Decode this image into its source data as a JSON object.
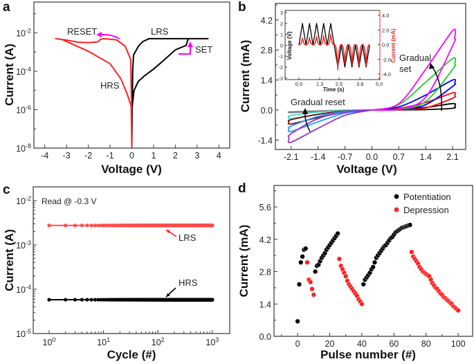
{
  "chart_data": [
    {
      "panel": "a",
      "type": "line",
      "xlabel": "Voltage (V)",
      "ylabel": "Current (A)",
      "xlim": [
        -4.5,
        4.5
      ],
      "ylim": [
        1e-08,
        0.4
      ],
      "yscale": "log",
      "xticks": [
        -4,
        -3,
        -2,
        -1,
        0,
        1,
        2,
        3,
        4
      ],
      "yticks": [
        "10^-8",
        "10^-6",
        "10^-4",
        "10^-2"
      ],
      "series": [
        {
          "color": "#000000",
          "points": [
            [
              0,
              3e-07
            ],
            [
              0.02,
              1.5e-06
            ],
            [
              0.1,
              1e-05
            ],
            [
              0.3,
              3e-05
            ],
            [
              0.6,
              6e-05
            ],
            [
              1,
              0.00013
            ],
            [
              1.5,
              0.0004
            ],
            [
              2,
              0.0013
            ],
            [
              2.4,
              0.002
            ],
            [
              2.5,
              0.0022
            ],
            [
              2.55,
              0.0035
            ],
            [
              2.6,
              0.005
            ],
            [
              3.5,
              0.005
            ],
            [
              0.8,
              0.005
            ],
            [
              0.5,
              0.0035
            ],
            [
              0.3,
              0.002
            ],
            [
              0.08,
              0.0007
            ],
            [
              0.04,
              0.0001
            ],
            [
              0.02,
              2e-06
            ],
            [
              0,
              1e-08
            ]
          ]
        },
        {
          "color": "#ff2020",
          "points": [
            [
              0,
              1e-08
            ],
            [
              -0.01,
              1e-06
            ],
            [
              -0.05,
              0.0004
            ],
            [
              -0.3,
              0.002
            ],
            [
              -0.7,
              0.0043
            ],
            [
              -1.3,
              0.005
            ],
            [
              -1.45,
              0.0045
            ],
            [
              -1.55,
              0.0034
            ],
            [
              -2,
              0.0031
            ],
            [
              -2.5,
              0.0033
            ],
            [
              -3,
              0.0042
            ],
            [
              -3.5,
              0.005
            ],
            [
              -3.2,
              0.0045
            ],
            [
              -2.8,
              0.0028
            ],
            [
              -2,
              0.0011
            ],
            [
              -1,
              0.00025
            ],
            [
              -0.5,
              4e-05
            ],
            [
              -0.2,
              6e-06
            ],
            [
              -0.03,
              1.5e-06
            ],
            [
              0,
              1e-08
            ]
          ]
        }
      ],
      "annotations": {
        "reset": "RESET",
        "lrs": "LRS",
        "set": "SET",
        "hrs": "HRS"
      },
      "annotation_color": "#ff00ff"
    },
    {
      "panel": "b",
      "type": "line",
      "xlabel": "Voltage (V)",
      "ylabel": "Current (mA)",
      "xlim": [
        -2.51,
        2.44
      ],
      "ylim": [
        -1.84,
        4.97
      ],
      "xticks": [
        -2.1,
        -1.4,
        -0.7,
        0.0,
        0.7,
        1.4,
        2.1
      ],
      "yticks": [
        -1.4,
        0.0,
        1.4,
        2.8,
        4.2
      ],
      "voltage_samples": [
        0,
        0.7,
        1.4,
        2.1
      ],
      "positive_loops": [
        {
          "color": "#000000",
          "up": [
            0,
            0.003,
            0.02,
            0.08
          ],
          "down": [
            0,
            0.03,
            0.12,
            0.3
          ]
        },
        {
          "color": "#ff0000",
          "up": [
            0,
            0.01,
            0.1,
            0.55
          ],
          "down": [
            0,
            0.08,
            0.35,
            0.8
          ]
        },
        {
          "color": "#0000ff",
          "up": [
            0,
            0.02,
            0.25,
            1.1
          ],
          "down": [
            0,
            0.15,
            0.7,
            1.4
          ]
        },
        {
          "color": "#22cc22",
          "up": [
            0,
            0.03,
            0.4,
            1.9
          ],
          "down": [
            0,
            0.25,
            1.3,
            2.4
          ]
        },
        {
          "color": "#ff00ff",
          "up": [
            0,
            0.05,
            0.6,
            3.0
          ],
          "down": [
            0,
            0.3,
            1.9,
            3.7
          ]
        }
      ],
      "negative_loops": [
        {
          "color": "#808080",
          "outer": [
            0,
            -0.02,
            -0.07,
            -0.12
          ],
          "inner": [
            0,
            -0.01,
            -0.04,
            -0.08
          ]
        },
        {
          "color": "#40e0c0",
          "outer": [
            0,
            -0.06,
            -0.2,
            -0.4
          ],
          "inner": [
            0,
            -0.02,
            -0.1,
            -0.25
          ]
        },
        {
          "color": "#7b1010",
          "outer": [
            0,
            -0.1,
            -0.35,
            -0.65
          ],
          "inner": [
            0,
            -0.04,
            -0.2,
            -0.45
          ]
        },
        {
          "color": "#1ea0ff",
          "outer": [
            0,
            -0.15,
            -0.55,
            -1.0
          ],
          "inner": [
            0,
            -0.06,
            -0.3,
            -0.75
          ]
        },
        {
          "color": "#9932cc",
          "outer": [
            0,
            -0.25,
            -0.85,
            -1.5
          ],
          "inner": [
            0,
            -0.1,
            -0.4,
            -1.1
          ]
        }
      ],
      "annotations": {
        "gradual_set_1": "Gradual",
        "gradual_set_2": "set",
        "gradual_reset": "Gradual reset"
      },
      "inset": {
        "xlabel": "Time (s)",
        "ylabel_left": "Voltage (V)",
        "ylabel_right": "Current (mA)",
        "xlim": [
          -0.86,
          5.04
        ],
        "ylim_left": [
          -3.14,
          3.19
        ],
        "ylim_right": [
          -4.75,
          4.66
        ],
        "xticks": [
          "0.0",
          "1.3",
          "2.5",
          "3.8",
          "5.0"
        ],
        "yticks_left": [
          -3,
          -2,
          -1,
          0,
          1,
          2,
          3
        ],
        "yticks_right": [
          "-4.0",
          "-2.0",
          "0.0",
          "2.0",
          "4.0"
        ],
        "voltage_amplitude": 2,
        "period_s": 0.44,
        "positive_current_peaks": [
          0.9,
          1.0,
          1.1,
          1.2,
          1.4
        ],
        "negative_current_peaks": [
          -3.4,
          -2.6,
          -2.7,
          -2.8,
          -2.9
        ],
        "voltage_color": "#000000",
        "current_color": "#ff2020"
      }
    },
    {
      "panel": "c",
      "type": "scatter",
      "xlabel": "Cycle (#)",
      "ylabel": "Current (A)",
      "xscale": "log",
      "yscale": "log",
      "xlim": [
        0.51,
        2090
      ],
      "ylim": [
        1e-05,
        0.0204
      ],
      "xticks": [
        "10^0",
        "10^1",
        "10^2",
        "10^3"
      ],
      "yticks": [
        "10^-5",
        "10^-4",
        "10^-3",
        "10^-2"
      ],
      "cycles": [
        1,
        1000
      ],
      "series": [
        {
          "name": "LRS",
          "color": "#ff4d4d",
          "current": 0.00275
        },
        {
          "name": "HRS",
          "color": "#000000",
          "current": 5.8e-05
        }
      ],
      "note": "Read @ -0.3 V"
    },
    {
      "panel": "d",
      "type": "scatter",
      "xlabel": "Pulse number (#)",
      "ylabel": "Current (mA)",
      "xlim": [
        -14.7,
        109
      ],
      "ylim": [
        0,
        6.53
      ],
      "xticks": [
        0,
        20,
        40,
        60,
        80,
        100
      ],
      "yticks": [
        "0.0",
        "1.4",
        "2.8",
        "4.2",
        "5.6"
      ],
      "legend": "top-right",
      "series": [
        {
          "name": "Potentiation",
          "color": "#000000",
          "points": [
            [
              0,
              0.65
            ],
            [
              1,
              2.25
            ],
            [
              2,
              3.2
            ],
            [
              3,
              3.45
            ],
            [
              4,
              3.75
            ],
            [
              5,
              3.8
            ],
            [
              11,
              2.8
            ],
            [
              12,
              3.05
            ],
            [
              13,
              3.1
            ],
            [
              14,
              3.25
            ],
            [
              15,
              3.4
            ],
            [
              16,
              3.5
            ],
            [
              17,
              3.6
            ],
            [
              18,
              3.75
            ],
            [
              19,
              3.85
            ],
            [
              20,
              3.95
            ],
            [
              21,
              4.05
            ],
            [
              22,
              4.15
            ],
            [
              23,
              4.25
            ],
            [
              24,
              4.35
            ],
            [
              25,
              4.45
            ],
            [
              41,
              2.25
            ],
            [
              42,
              2.45
            ],
            [
              43,
              2.55
            ],
            [
              44,
              2.65
            ],
            [
              45,
              2.75
            ],
            [
              46,
              2.9
            ],
            [
              47,
              3.0
            ],
            [
              48,
              3.2
            ],
            [
              49,
              3.4
            ],
            [
              50,
              3.5
            ],
            [
              51,
              3.6
            ],
            [
              52,
              3.7
            ],
            [
              53,
              3.8
            ],
            [
              54,
              3.9
            ],
            [
              55,
              3.95
            ],
            [
              56,
              4.05
            ],
            [
              57,
              4.15
            ],
            [
              58,
              4.25
            ],
            [
              59,
              4.3
            ],
            [
              60,
              4.4
            ],
            [
              61,
              4.5
            ],
            [
              62,
              4.55
            ],
            [
              63,
              4.6
            ],
            [
              64,
              4.65
            ],
            [
              65,
              4.7
            ],
            [
              66,
              4.72
            ],
            [
              67,
              4.75
            ],
            [
              68,
              4.77
            ],
            [
              69,
              4.8
            ],
            [
              70,
              4.82
            ]
          ]
        },
        {
          "name": "Depression",
          "color": "#ff2020",
          "points": [
            [
              6,
              3.2
            ],
            [
              7,
              2.45
            ],
            [
              8,
              2.35
            ],
            [
              9,
              2.05
            ],
            [
              10,
              1.8
            ],
            [
              26,
              3.35
            ],
            [
              27,
              3.05
            ],
            [
              28,
              2.9
            ],
            [
              29,
              2.75
            ],
            [
              30,
              2.6
            ],
            [
              31,
              2.4
            ],
            [
              32,
              2.25
            ],
            [
              33,
              2.15
            ],
            [
              34,
              2.05
            ],
            [
              35,
              1.95
            ],
            [
              36,
              1.85
            ],
            [
              37,
              1.75
            ],
            [
              38,
              1.6
            ],
            [
              39,
              1.5
            ],
            [
              40,
              1.4
            ],
            [
              71,
              3.65
            ],
            [
              72,
              3.45
            ],
            [
              73,
              3.35
            ],
            [
              74,
              3.25
            ],
            [
              75,
              3.15
            ],
            [
              76,
              3.0
            ],
            [
              77,
              2.9
            ],
            [
              78,
              2.8
            ],
            [
              79,
              2.75
            ],
            [
              80,
              2.7
            ],
            [
              81,
              2.65
            ],
            [
              82,
              2.6
            ],
            [
              83,
              2.45
            ],
            [
              84,
              2.3
            ],
            [
              85,
              2.2
            ],
            [
              86,
              2.1
            ],
            [
              87,
              2.05
            ],
            [
              88,
              1.95
            ],
            [
              89,
              1.85
            ],
            [
              90,
              1.8
            ],
            [
              91,
              1.7
            ],
            [
              92,
              1.65
            ],
            [
              93,
              1.58
            ],
            [
              94,
              1.52
            ],
            [
              95,
              1.45
            ],
            [
              96,
              1.4
            ],
            [
              97,
              1.3
            ],
            [
              98,
              1.25
            ],
            [
              99,
              1.18
            ],
            [
              100,
              1.12
            ]
          ]
        }
      ]
    }
  ],
  "panel_labels": [
    "a",
    "b",
    "c",
    "d"
  ]
}
